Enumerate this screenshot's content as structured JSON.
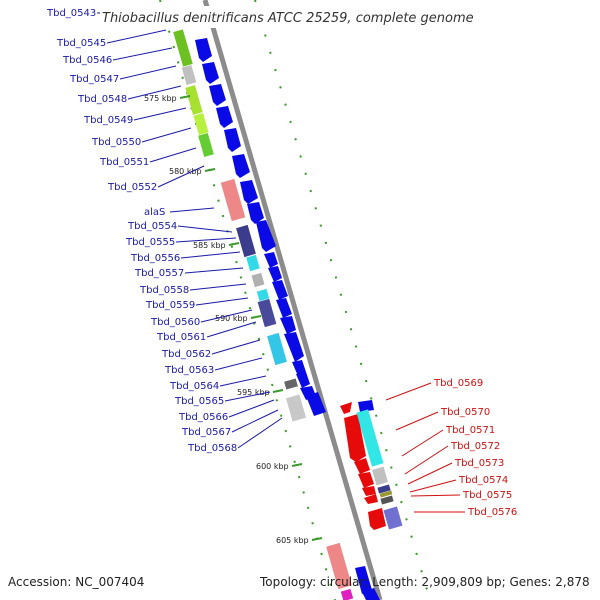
{
  "title": "Thiobacillus denitrificans ATCC 25259, complete genome",
  "accession": "Accession: NC_007404",
  "topology": "Topology: circular; Length: 2,909,809 bp; Genes: 2,878",
  "colors": {
    "backbone": "#8c8c8c",
    "forward_cds": "#0a0ae6",
    "reverse_cds": "#e60a0a",
    "label_left": "#1a1aaa",
    "label_right": "#d11010",
    "gc_dots": "#3a9a2a"
  },
  "kbp_marks": [
    "575 kbp",
    "580 kbp",
    "585 kbp",
    "590 kbp",
    "595 kbp",
    "600 kbp",
    "605 kbp"
  ],
  "left_genes": [
    "Tbd_0543",
    "Tbd_0545",
    "Tbd_0546",
    "Tbd_0547",
    "Tbd_0548",
    "Tbd_0549",
    "Tbd_0550",
    "Tbd_0551",
    "Tbd_0552",
    "alaS",
    "Tbd_0554",
    "Tbd_0555",
    "Tbd_0556",
    "Tbd_0557",
    "Tbd_0558",
    "Tbd_0559",
    "Tbd_0560",
    "Tbd_0561",
    "Tbd_0562",
    "Tbd_0563",
    "Tbd_0564",
    "Tbd_0565",
    "Tbd_0566",
    "Tbd_0567",
    "Tbd_0568"
  ],
  "right_genes": [
    "Tbd_0569",
    "Tbd_0570",
    "Tbd_0571",
    "Tbd_0572",
    "Tbd_0573",
    "Tbd_0574",
    "Tbd_0575",
    "Tbd_0576"
  ]
}
